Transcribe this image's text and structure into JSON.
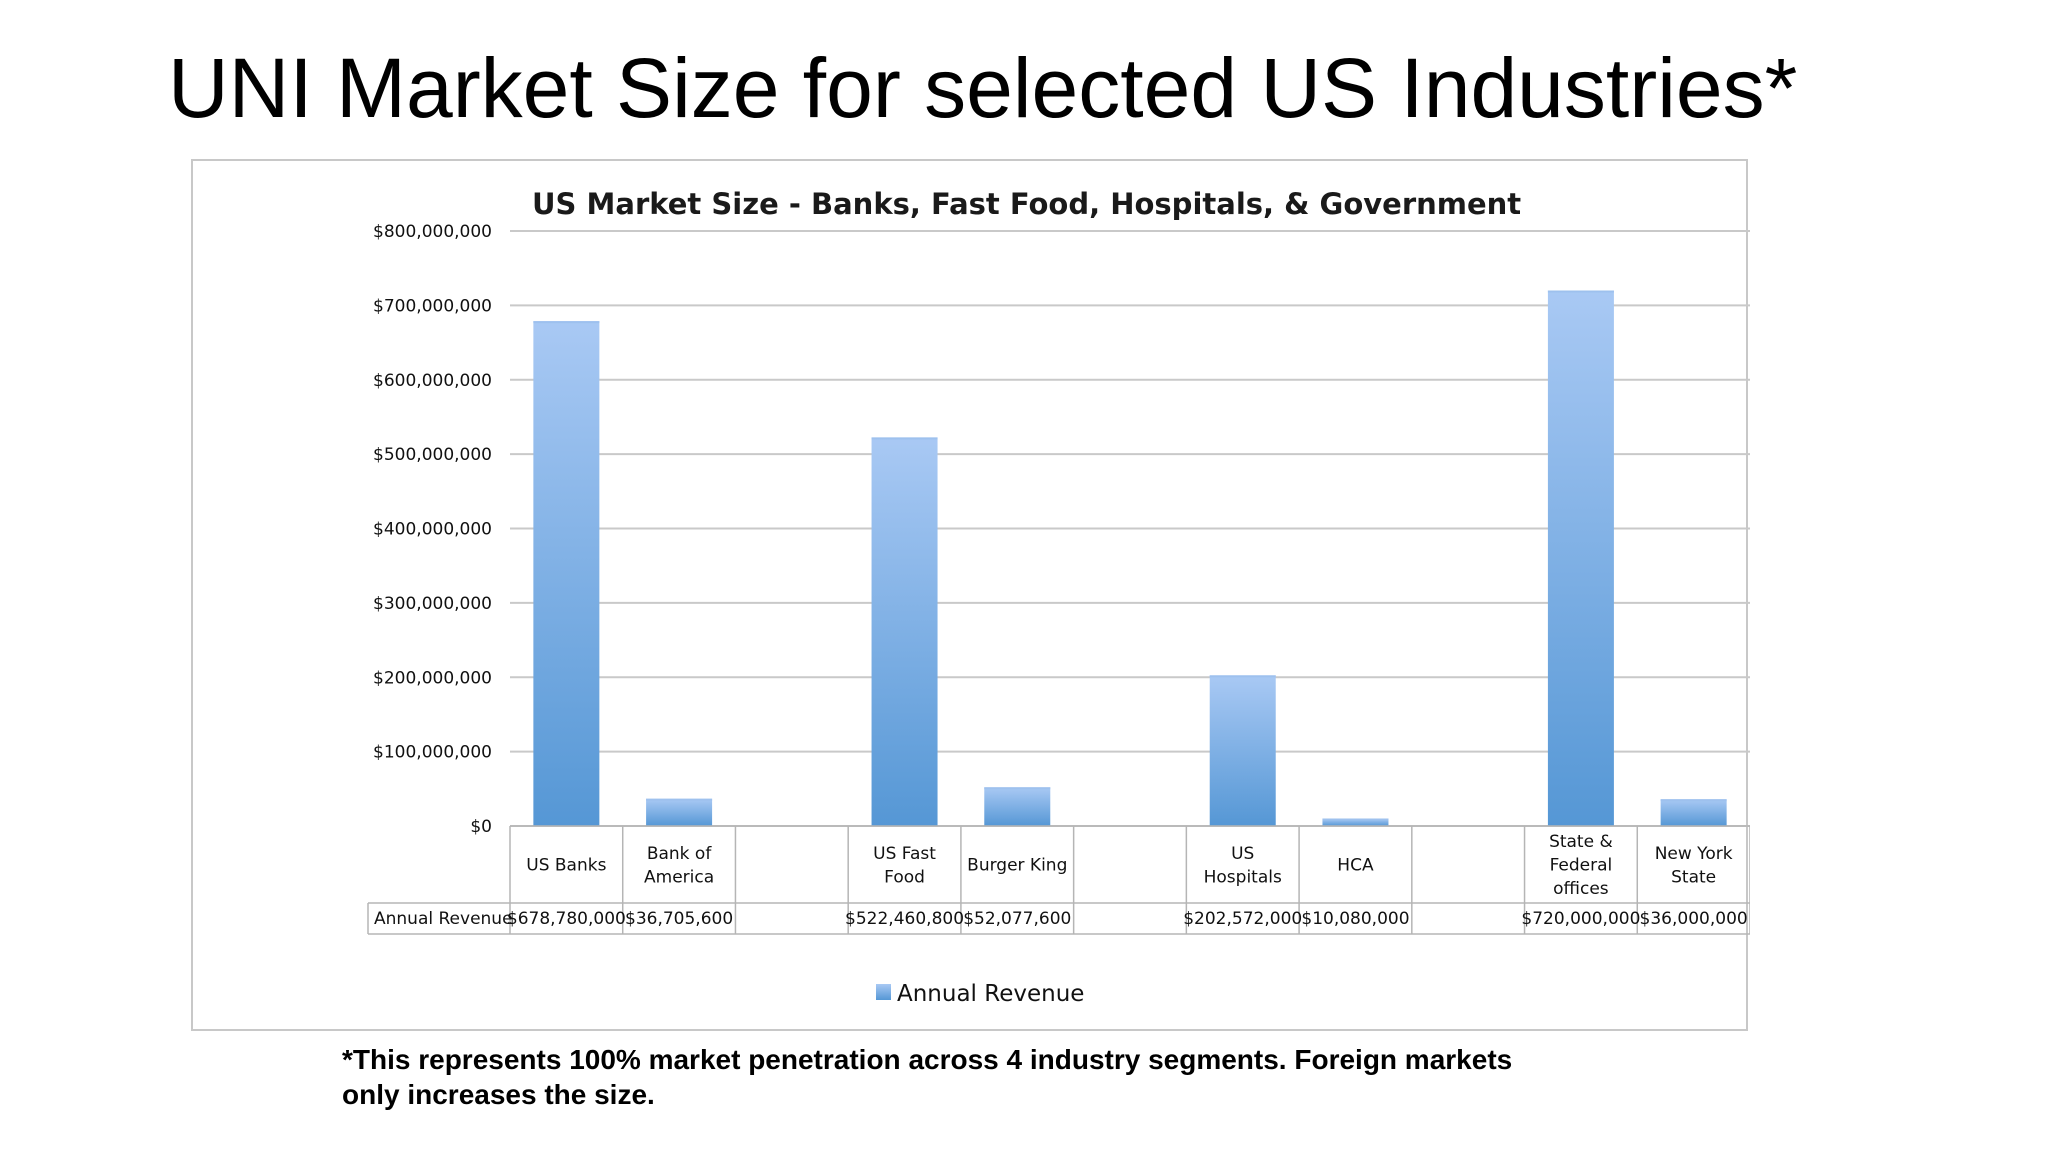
{
  "slide": {
    "title": "UNI Market Size for selected US Industries*",
    "footnote_line1": "*This represents 100% market penetration across 4 industry segments.  Foreign markets",
    "footnote_line2": "only increases the size."
  },
  "chart_data": {
    "type": "bar",
    "title": "US Market Size - Banks, Fast Food, Hospitals, & Government",
    "xlabel": "",
    "ylabel": "",
    "ylim": [
      0,
      800000000
    ],
    "yticks": [
      0,
      100000000,
      200000000,
      300000000,
      400000000,
      500000000,
      600000000,
      700000000,
      800000000
    ],
    "ytick_labels": [
      "$0",
      "$100,000,000",
      "$200,000,000",
      "$300,000,000",
      "$400,000,000",
      "$500,000,000",
      "$600,000,000",
      "$700,000,000",
      "$800,000,000"
    ],
    "grid": true,
    "legend_position": "bottom",
    "categories": [
      [
        "US Banks"
      ],
      [
        "Bank of",
        "America"
      ],
      [],
      [
        "US Fast",
        "Food"
      ],
      [
        "Burger King"
      ],
      [],
      [
        "US",
        "Hospitals"
      ],
      [
        "HCA"
      ],
      [],
      [
        "State &",
        "Federal",
        "offices"
      ],
      [
        "New York",
        "State"
      ]
    ],
    "series": [
      {
        "name": "Annual Revenue",
        "color": "#5b9bd5",
        "values": [
          678780000,
          36705600,
          null,
          522460800,
          52077600,
          null,
          202572000,
          10080000,
          null,
          720000000,
          36000000
        ],
        "value_labels": [
          "$678,780,000",
          "$36,705,600",
          "",
          "$522,460,800",
          "$52,077,600",
          "",
          "$202,572,000",
          "$10,080,000",
          "",
          "$720,000,000",
          "$36,000,000"
        ]
      }
    ]
  }
}
